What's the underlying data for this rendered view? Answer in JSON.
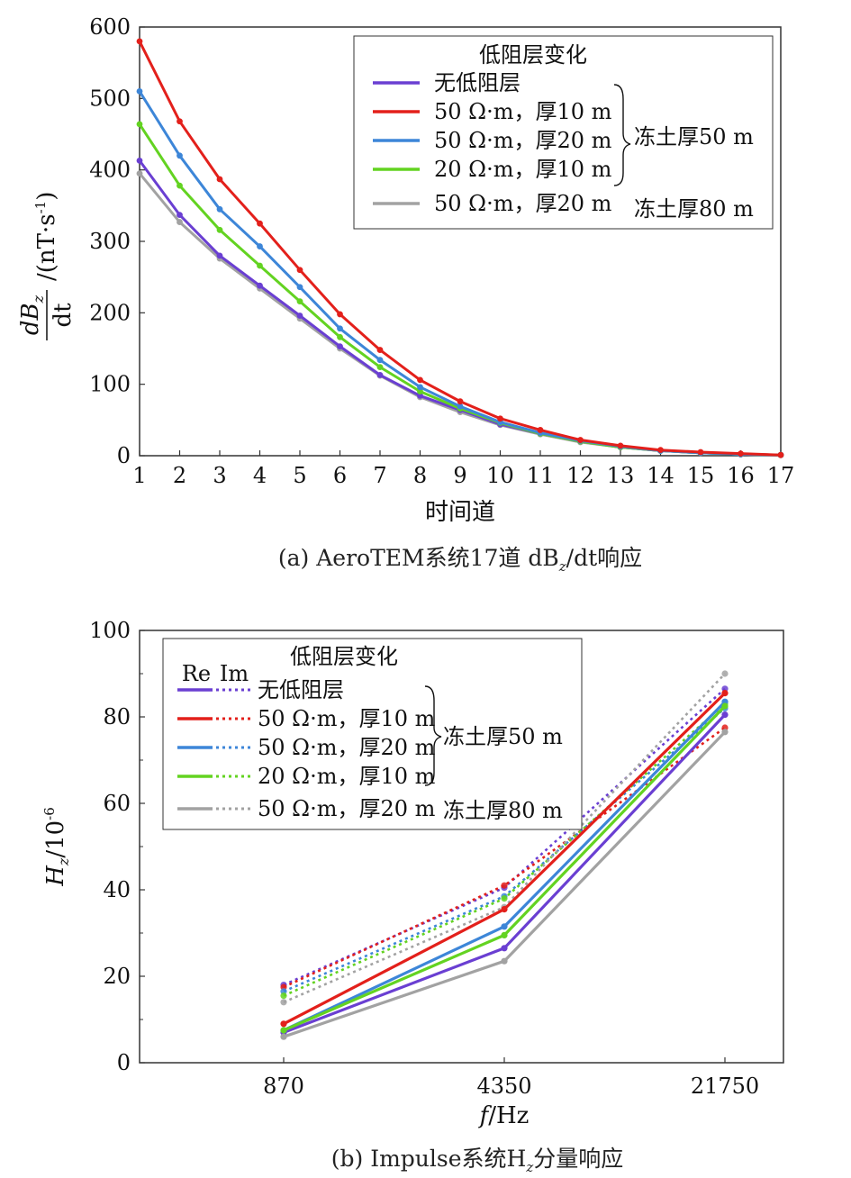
{
  "chart_data": [
    {
      "type": "line",
      "caption": "(a)  AeroTEM系统17道 dB",
      "caption_sub": "z",
      "caption_tail": "/dt响应",
      "xlabel": "时间道",
      "ylabel_main": "/(nT·s",
      "ylabel_sup": "-1",
      "ylabel_close": ")",
      "ylabel_frac_num": "dB",
      "ylabel_frac_num_sub": "z",
      "ylabel_frac_den": "dt",
      "xlim": [
        1,
        17
      ],
      "ylim": [
        0,
        600
      ],
      "x_ticks": [
        1,
        2,
        3,
        4,
        5,
        6,
        7,
        8,
        9,
        10,
        11,
        12,
        13,
        14,
        15,
        16,
        17
      ],
      "y_ticks": [
        0,
        100,
        200,
        300,
        400,
        500,
        600
      ],
      "x_tick_labels": [
        "1",
        "2",
        "3",
        "4",
        "5",
        "6",
        "7",
        "8",
        "9",
        "10",
        "11",
        "12",
        "13",
        "14",
        "15",
        "16",
        "17"
      ],
      "y_tick_labels": [
        "0",
        "100",
        "200",
        "300",
        "400",
        "500",
        "600"
      ],
      "legend": {
        "title": "低阻层变化",
        "group1_label": "冻土厚50 m",
        "group2_label": "冻土厚80 m",
        "placement": "top-right"
      },
      "x": [
        1,
        2,
        3,
        4,
        5,
        6,
        7,
        8,
        9,
        10,
        11,
        12,
        13,
        14,
        15,
        16,
        17
      ],
      "series": [
        {
          "name": "无低阻层",
          "color": "#6a3fd2",
          "values": [
            413,
            337,
            280,
            238,
            196,
            153,
            113,
            84,
            64,
            44,
            31,
            20,
            12,
            7,
            4,
            2,
            1
          ]
        },
        {
          "name": "50 Ω·m，厚10 m",
          "color": "#e3201b",
          "values": [
            580,
            468,
            387,
            325,
            260,
            198,
            148,
            106,
            76,
            52,
            36,
            22,
            14,
            8,
            5,
            3,
            1
          ]
        },
        {
          "name": "50 Ω·m，厚20 m",
          "color": "#3d86d8",
          "values": [
            510,
            420,
            345,
            293,
            236,
            178,
            134,
            96,
            69,
            47,
            32,
            21,
            13,
            7,
            4,
            2,
            1
          ]
        },
        {
          "name": "20 Ω·m，厚10 m",
          "color": "#63d321",
          "values": [
            464,
            378,
            316,
            266,
            216,
            166,
            124,
            90,
            66,
            46,
            31,
            20,
            12,
            7,
            4,
            2,
            1
          ]
        },
        {
          "name": "50 Ω·m，厚20 m",
          "color": "#a2a2a2",
          "values": [
            395,
            327,
            276,
            234,
            192,
            150,
            112,
            82,
            61,
            43,
            30,
            19,
            12,
            7,
            4,
            2,
            1
          ]
        }
      ]
    },
    {
      "type": "line",
      "caption": "(b) Impulse系统H",
      "caption_sub": "z",
      "caption_tail": "分量响应",
      "xlabel_f": "f",
      "xlabel_tail": "/Hz",
      "ylabel_main": "H",
      "ylabel_sub": "z",
      "ylabel_tail": "/10",
      "ylabel_sup": "-6",
      "categories": [
        "870",
        "4350",
        "21750"
      ],
      "ylim": [
        0,
        100
      ],
      "y_ticks": [
        0,
        20,
        40,
        60,
        80,
        100
      ],
      "y_tick_labels": [
        "0",
        "20",
        "40",
        "60",
        "80",
        "100"
      ],
      "legend": {
        "title": "低阻层变化",
        "re_label": "Re",
        "im_label": "Im",
        "group1_label": "冻土厚50 m",
        "group2_label": "冻土厚80 m",
        "placement": "top-left"
      },
      "series": [
        {
          "name": "无低阻层",
          "color": "#6a3fd2",
          "re": [
            7,
            26.5,
            80.5
          ],
          "im": [
            18,
            40.5,
            86.5
          ]
        },
        {
          "name": "50 Ω·m，厚10 m",
          "color": "#e3201b",
          "re": [
            9,
            35.5,
            85.5
          ],
          "im": [
            17.5,
            41,
            77.5
          ]
        },
        {
          "name": "50 Ω·m，厚20 m",
          "color": "#3d86d8",
          "re": [
            7.5,
            31.5,
            83.5
          ],
          "im": [
            16.5,
            38.5,
            82
          ]
        },
        {
          "name": "20 Ω·m，厚10 m",
          "color": "#63d321",
          "re": [
            7.5,
            29.5,
            82.5
          ],
          "im": [
            15.5,
            38,
            83
          ]
        },
        {
          "name": "50 Ω·m，厚20 m",
          "color": "#a2a2a2",
          "re": [
            6,
            23.5,
            76.5
          ],
          "im": [
            14,
            36,
            90
          ]
        }
      ]
    }
  ]
}
